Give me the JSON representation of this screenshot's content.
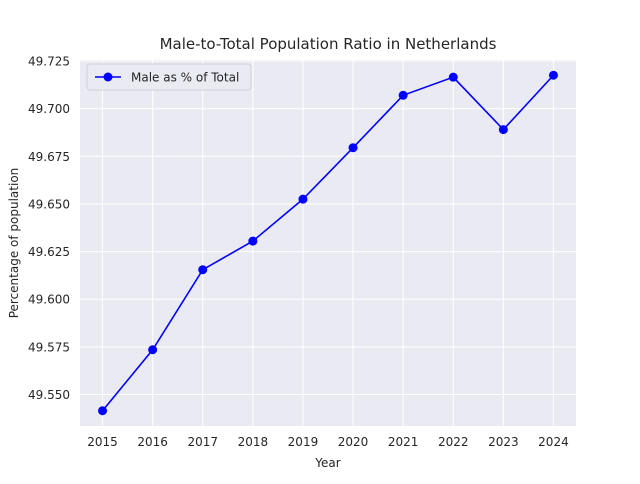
{
  "chart_data": {
    "type": "line",
    "title": "Male-to-Total Population Ratio in Netherlands",
    "xlabel": "Year",
    "ylabel": "Percentage of population",
    "x": [
      2015,
      2016,
      2017,
      2018,
      2019,
      2020,
      2021,
      2022,
      2023,
      2024
    ],
    "x_ticks": [
      "2015",
      "2016",
      "2017",
      "2018",
      "2019",
      "2020",
      "2021",
      "2022",
      "2023",
      "2024"
    ],
    "y_ticks": [
      "49.550",
      "49.575",
      "49.600",
      "49.625",
      "49.650",
      "49.675",
      "49.700",
      "49.725"
    ],
    "y_tick_values": [
      49.55,
      49.575,
      49.6,
      49.625,
      49.65,
      49.675,
      49.7,
      49.725
    ],
    "xlim": [
      2014.55,
      2024.45
    ],
    "ylim": [
      49.5335,
      49.7255
    ],
    "grid": true,
    "legend_position": "top-left",
    "series": [
      {
        "name": "Male as % of Total",
        "color": "#0000ff",
        "marker": "circle",
        "values": [
          49.5415,
          49.5735,
          49.6155,
          49.6305,
          49.6525,
          49.6795,
          49.707,
          49.7165,
          49.689,
          49.7175
        ]
      }
    ],
    "background_color": "#eaeaf2",
    "grid_color": "#ffffff"
  }
}
